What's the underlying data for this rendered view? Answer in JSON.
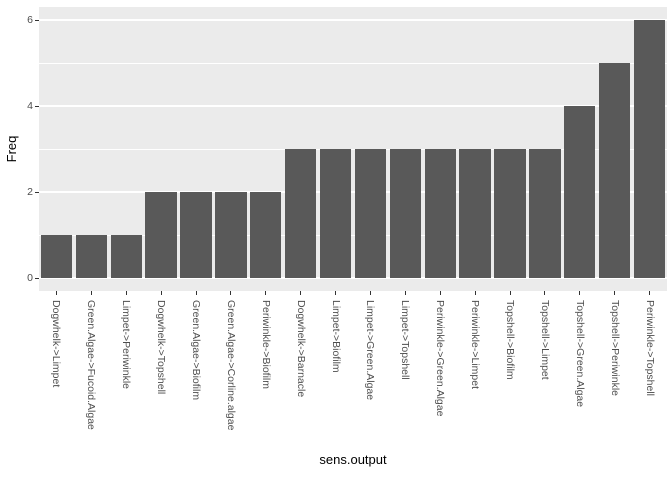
{
  "chart_data": {
    "type": "bar",
    "title": "",
    "xlabel": "sens.output",
    "ylabel": "Freq",
    "categories": [
      "Dogwhelk->Limpet",
      "Green.Algae->Fucoid.Algae",
      "Limpet->Periwinkle",
      "Dogwhelk->Topshell",
      "Green.Algae->Biofilm",
      "Green.Algae->Corline.algae",
      "Periwinkle->Biofilm",
      "Dogwhelk->Barnacle",
      "Limpet->Biofilm",
      "Limpet->Green.Algae",
      "Limpet->Topshell",
      "Periwinkle->Green.Algae",
      "Periwinkle->Limpet",
      "Topshell->Biofilm",
      "Topshell->Limpet",
      "Topshell->Green.Algae",
      "Topshell->Periwinkle",
      "Periwinkle->Topshell"
    ],
    "values": [
      1,
      1,
      1,
      2,
      2,
      2,
      2,
      3,
      3,
      3,
      3,
      3,
      3,
      3,
      3,
      4,
      5,
      6
    ],
    "ylim": [
      0,
      6.3
    ],
    "yticks": [
      0,
      2,
      4,
      6
    ],
    "yticks_minor": [
      1,
      3,
      5
    ],
    "grid": "major+minor",
    "legend": "none",
    "colors": {
      "bar": "#595959",
      "panel_bg": "#EBEBEB",
      "grid": "#FFFFFF",
      "axis_text": "#4D4D4D",
      "axis_title": "#000000",
      "tick_mark": "#333333",
      "outer_bg": "#FFFFFF"
    }
  }
}
